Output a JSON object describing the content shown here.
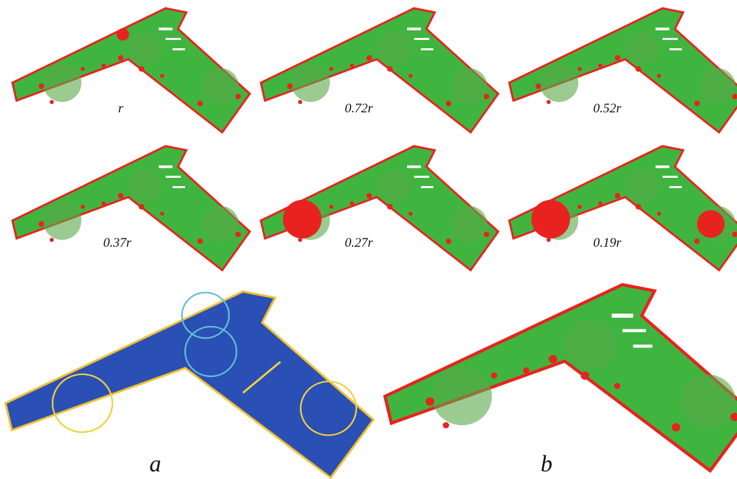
{
  "panels": [
    {
      "label": "r"
    },
    {
      "label": "0.72r"
    },
    {
      "label": "0.52r"
    },
    {
      "label": "0.37r"
    },
    {
      "label": "0.27r"
    },
    {
      "label": "0.19r"
    }
  ],
  "bottom": [
    {
      "label": "a"
    },
    {
      "label": "b"
    }
  ]
}
